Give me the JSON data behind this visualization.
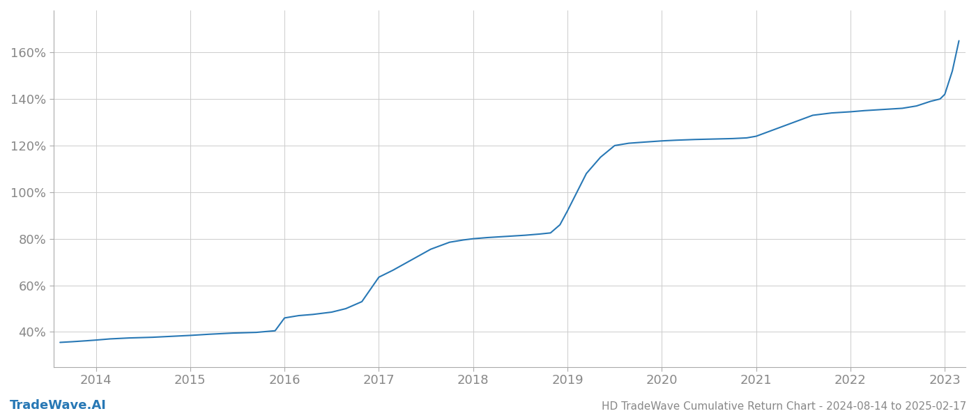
{
  "title": "HD TradeWave Cumulative Return Chart - 2024-08-14 to 2025-02-17",
  "watermark": "TradeWave.AI",
  "line_color": "#2878b5",
  "background_color": "#ffffff",
  "grid_color": "#cccccc",
  "tick_color": "#888888",
  "spine_color": "#aaaaaa",
  "x_years": [
    2014,
    2015,
    2016,
    2017,
    2018,
    2019,
    2020,
    2021,
    2022,
    2023
  ],
  "x_data": [
    2013.62,
    2013.75,
    2013.9,
    2014.0,
    2014.15,
    2014.35,
    2014.6,
    2014.85,
    2015.0,
    2015.2,
    2015.45,
    2015.7,
    2015.9,
    2016.0,
    2016.15,
    2016.3,
    2016.5,
    2016.65,
    2016.82,
    2017.0,
    2017.15,
    2017.35,
    2017.55,
    2017.75,
    2017.9,
    2018.0,
    2018.15,
    2018.35,
    2018.55,
    2018.7,
    2018.82,
    2018.92,
    2019.0,
    2019.1,
    2019.2,
    2019.35,
    2019.5,
    2019.65,
    2019.82,
    2020.0,
    2020.15,
    2020.35,
    2020.55,
    2020.75,
    2020.9,
    2021.0,
    2021.2,
    2021.4,
    2021.6,
    2021.8,
    2022.0,
    2022.15,
    2022.35,
    2022.55,
    2022.7,
    2022.85,
    2022.95,
    2023.0,
    2023.08,
    2023.15
  ],
  "y_data": [
    35.5,
    35.8,
    36.2,
    36.5,
    37.0,
    37.4,
    37.7,
    38.2,
    38.5,
    39.0,
    39.5,
    39.8,
    40.5,
    46.0,
    47.0,
    47.5,
    48.5,
    50.0,
    53.0,
    63.5,
    66.5,
    71.0,
    75.5,
    78.5,
    79.5,
    80.0,
    80.5,
    81.0,
    81.5,
    82.0,
    82.5,
    86.0,
    92.0,
    100.0,
    108.0,
    115.0,
    120.0,
    121.0,
    121.5,
    122.0,
    122.3,
    122.6,
    122.8,
    123.0,
    123.3,
    124.0,
    127.0,
    130.0,
    133.0,
    134.0,
    134.5,
    135.0,
    135.5,
    136.0,
    137.0,
    139.0,
    140.0,
    142.0,
    152.0,
    165.0
  ],
  "ylim": [
    25,
    178
  ],
  "xlim": [
    2013.55,
    2023.22
  ],
  "yticks": [
    40,
    60,
    80,
    100,
    120,
    140,
    160
  ],
  "line_width": 1.5,
  "title_fontsize": 11,
  "tick_fontsize": 13,
  "watermark_fontsize": 13
}
